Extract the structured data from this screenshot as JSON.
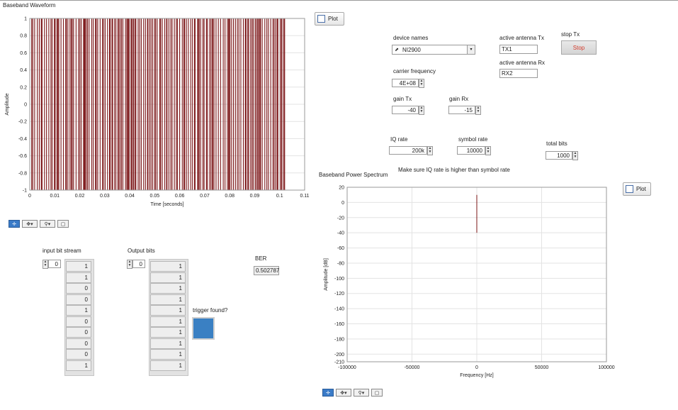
{
  "waveform": {
    "title": "Baseband Waveform",
    "xlabel": "Time [seconds]",
    "ylabel": "Amplitude",
    "plot_label": "Plot"
  },
  "spectrum": {
    "title": "Baseband Power Spectrum",
    "xlabel": "Frequency [Hz]",
    "ylabel": "Amplitude [dB]",
    "plot_label": "Plot"
  },
  "controls": {
    "device_names_label": "device names",
    "device_name": "NI2900",
    "active_tx_label": "active antenna Tx",
    "active_tx": "TX1",
    "active_rx_label": "active antenna Rx",
    "active_rx": "RX2",
    "stop_tx_label": "stop Tx",
    "stop_button": "Stop",
    "carrier_label": "carrier frequency",
    "carrier_value": "4E+08",
    "gain_tx_label": "gain Tx",
    "gain_tx_value": "-40",
    "gain_rx_label": "gain Rx",
    "gain_rx_value": "-15",
    "iq_rate_label": "IQ rate",
    "iq_rate_value": "200k",
    "symbol_rate_label": "symbol rate",
    "symbol_rate_value": "10000",
    "total_bits_label": "total bits",
    "total_bits_value": "1000",
    "note": "Make sure IQ rate is higher than symbol rate"
  },
  "bits": {
    "input_label": "input bit stream",
    "input_index": "0",
    "input_values": [
      "1",
      "1",
      "0",
      "0",
      "1",
      "0",
      "0",
      "0",
      "0",
      "1"
    ],
    "output_label": "Output bits",
    "output_index": "0",
    "output_values": [
      "1",
      "1",
      "1",
      "1",
      "1",
      "1",
      "1",
      "1",
      "1",
      "1"
    ],
    "ber_label": "BER",
    "ber_value": "0.502787",
    "trigger_label": "trigger found?"
  },
  "colors": {
    "trace": "#7b1416",
    "led_on": "#3a80c3",
    "stop_text": "#d43b2b"
  },
  "chart_data": [
    {
      "type": "line",
      "title": "Baseband Waveform",
      "xlabel": "Time [seconds]",
      "ylabel": "Amplitude",
      "xlim": [
        0,
        0.11
      ],
      "ylim": [
        -1,
        1
      ],
      "xticks": [
        "0",
        "0.01",
        "0.02",
        "0.03",
        "0.04",
        "0.05",
        "0.06",
        "0.07",
        "0.08",
        "0.09",
        "0.1",
        "0.11"
      ],
      "yticks": [
        "1",
        "0.8",
        "0.6",
        "0.4",
        "0.2",
        "0",
        "-0.2",
        "-0.4",
        "-0.6",
        "-0.8",
        "-1"
      ],
      "series": [
        {
          "x_range": [
            0,
            0.102
          ],
          "y_range": [
            -1,
            1
          ]
        }
      ],
      "grid": true
    },
    {
      "type": "line",
      "title": "Baseband Power Spectrum",
      "xlabel": "Frequency [Hz]",
      "ylabel": "Amplitude [dB]",
      "xlim": [
        -100000,
        100000
      ],
      "ylim": [
        -210,
        20
      ],
      "xticks": [
        "-100000",
        "-50000",
        "0",
        "50000",
        "100000"
      ],
      "yticks": [
        "20",
        "0",
        "-20",
        "-40",
        "-60",
        "-80",
        "-100",
        "-120",
        "-140",
        "-160",
        "-180",
        "-200",
        "-210"
      ],
      "series": [
        {
          "peak_at": 0,
          "peak_db": 10,
          "noise_floor_db": [
            -180,
            -110
          ]
        }
      ],
      "grid": true
    }
  ]
}
